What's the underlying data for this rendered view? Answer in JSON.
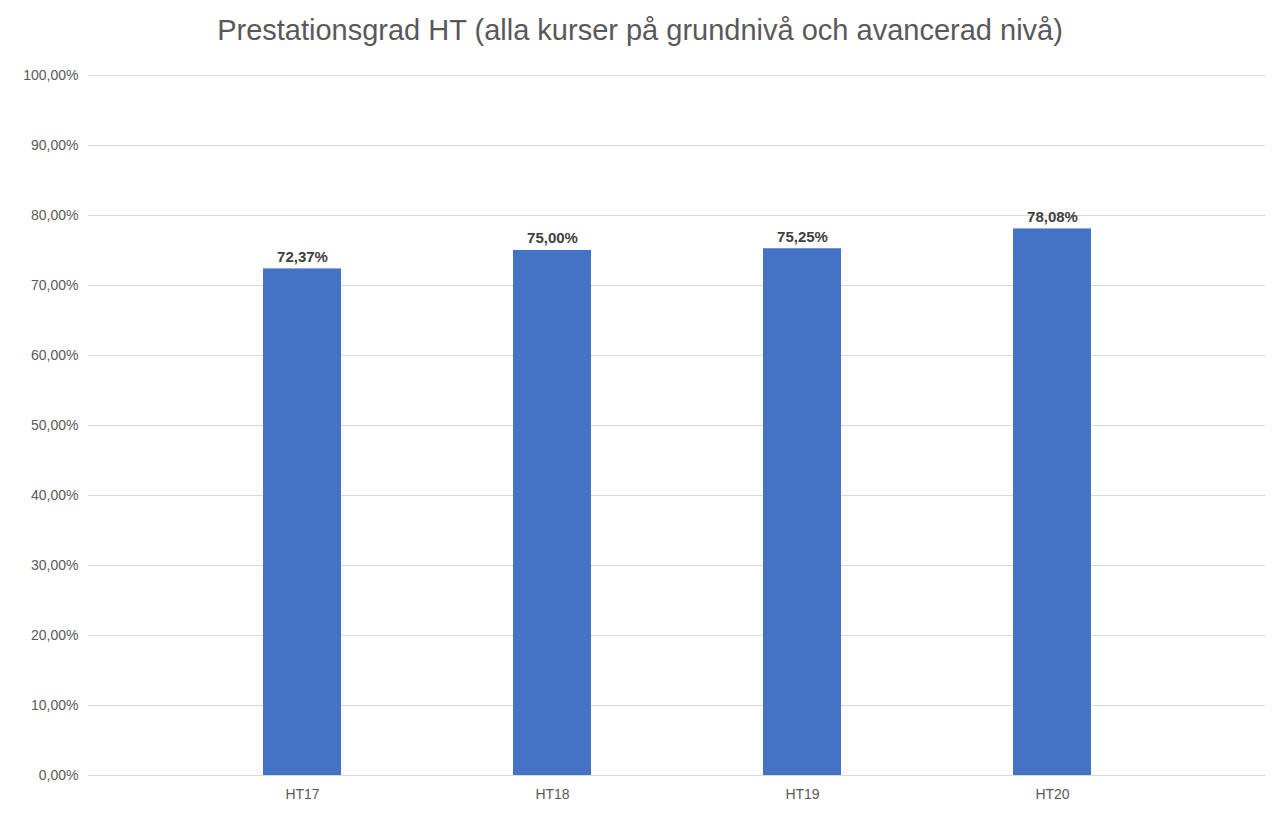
{
  "chart_data": {
    "type": "bar",
    "title": "Prestationsgrad HT (alla kurser på grundnivå och avancerad nivå)",
    "categories": [
      "HT17",
      "HT18",
      "HT19",
      "HT20"
    ],
    "values": [
      72.37,
      75.0,
      75.25,
      78.08
    ],
    "value_labels": [
      "72,37%",
      "75,00%",
      "75,25%",
      "78,08%"
    ],
    "data_labels": true,
    "color": "#4472c4",
    "ylim": [
      0,
      100
    ],
    "yticks": [
      {
        "value": 0,
        "label": "0,00%"
      },
      {
        "value": 10,
        "label": "10,00%"
      },
      {
        "value": 20,
        "label": "20,00%"
      },
      {
        "value": 30,
        "label": "30,00%"
      },
      {
        "value": 40,
        "label": "40,00%"
      },
      {
        "value": 50,
        "label": "50,00%"
      },
      {
        "value": 60,
        "label": "60,00%"
      },
      {
        "value": 70,
        "label": "70,00%"
      },
      {
        "value": 80,
        "label": "80,00%"
      },
      {
        "value": 90,
        "label": "90,00%"
      },
      {
        "value": 100,
        "label": "100,00%"
      }
    ],
    "grid": true
  }
}
